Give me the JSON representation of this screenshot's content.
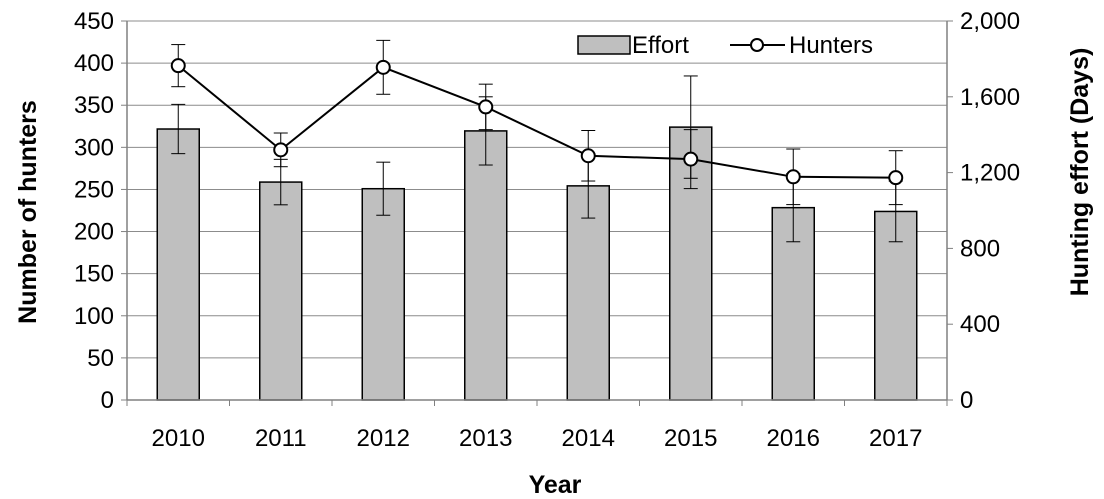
{
  "chart_data": {
    "type": "bar",
    "categories": [
      "2010",
      "2011",
      "2012",
      "2013",
      "2014",
      "2015",
      "2016",
      "2017"
    ],
    "xlabel": "Year",
    "ylabel": "Number of hunters",
    "y2label": "Hunting effort (Days)",
    "ylim": [
      0,
      450
    ],
    "y_ticks": [
      0,
      50,
      100,
      150,
      200,
      250,
      300,
      350,
      400,
      450
    ],
    "y_tick_labels": [
      "0",
      "50",
      "100",
      "150",
      "200",
      "250",
      "300",
      "350",
      "400",
      "450"
    ],
    "y2lim": [
      0,
      2000
    ],
    "y2_ticks": [
      0,
      400,
      800,
      1200,
      1600,
      2000
    ],
    "y2_tick_labels": [
      "0",
      "400",
      "800",
      "1,200",
      "1,600",
      "2,000"
    ],
    "grid": true,
    "legend_position": "top-right",
    "series": [
      {
        "name": "Effort",
        "type": "bar",
        "axis": "right",
        "color": "#bfbfbf",
        "values": [
          1430,
          1150,
          1115,
          1420,
          1130,
          1440,
          1015,
          995
        ],
        "error": [
          130,
          120,
          140,
          180,
          170,
          270,
          180,
          160
        ]
      },
      {
        "name": "Hunters",
        "type": "line",
        "axis": "left",
        "color": "#000000",
        "marker": "open-circle",
        "values": [
          397,
          297,
          395,
          348,
          290,
          286,
          265,
          264
        ],
        "error": [
          25,
          20,
          32,
          27,
          30,
          35,
          33,
          32
        ]
      }
    ]
  }
}
